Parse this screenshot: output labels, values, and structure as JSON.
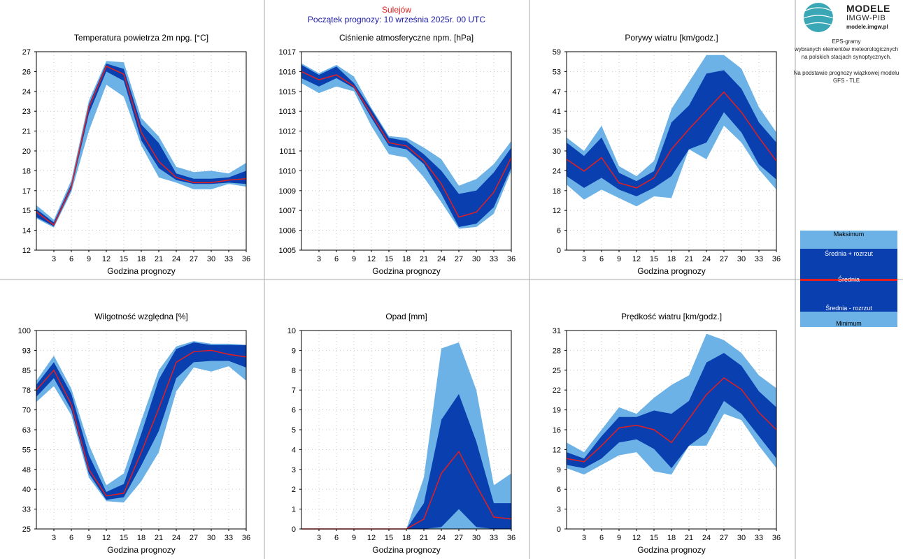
{
  "header": {
    "station": "Sulejów",
    "forecast_start": "Początek prognozy: 10 września 2025r. 00 UTC"
  },
  "logo": {
    "line1": "MODELE",
    "line2": "IMGW-PIB",
    "line3": "modele.imgw.pl",
    "mark": "IMGW"
  },
  "description": {
    "line1": "EPS-gramy",
    "line2": "wybranych elementów meteorologicznych",
    "line3": "na polskich stacjach  synoptycznych.",
    "line4": "Na podstawie prognozy wiązkowej modelu",
    "line5": "GFS - TLE"
  },
  "legend": {
    "max": "Maksimum",
    "mean_plus": "Średnia + rozrzut",
    "mean": "Średnia",
    "mean_minus": "Średnia - rozrzut",
    "min": "Minimum"
  },
  "colors": {
    "outer_band": "#6cb2e6",
    "inner_band": "#0a3fb0",
    "mean_line": "#e41e1e",
    "grid": "#c8c8c8"
  },
  "chart_data": [
    {
      "type": "area",
      "title": "Temperatura powietrza 2m npg. [°C]",
      "xlabel": "Godzina prognozy",
      "x": [
        0,
        3,
        6,
        9,
        12,
        15,
        18,
        21,
        24,
        27,
        30,
        33,
        36
      ],
      "xticks": [
        "3",
        "6",
        "9",
        "12",
        "15",
        "18",
        "21",
        "24",
        "27",
        "30",
        "33",
        "36"
      ],
      "yticks": [
        "12",
        "14",
        "15",
        "17",
        "18",
        "20",
        "21",
        "23",
        "24",
        "26",
        "27"
      ],
      "ylim": [
        12,
        27
      ],
      "series": {
        "max": [
          15.4,
          14.3,
          17.3,
          23.3,
          26.3,
          26.2,
          22.0,
          20.6,
          18.3,
          17.9,
          18.0,
          17.8,
          18.6
        ],
        "mean_plus": [
          15.1,
          14.1,
          17.0,
          23.0,
          26.1,
          25.7,
          21.5,
          20.1,
          17.8,
          17.4,
          17.4,
          17.5,
          18.0
        ],
        "mean": [
          14.9,
          13.9,
          16.8,
          22.8,
          25.9,
          25.3,
          20.9,
          18.7,
          17.5,
          17.1,
          17.1,
          17.3,
          17.4
        ],
        "mean_minus": [
          14.5,
          13.8,
          16.6,
          22.3,
          25.5,
          24.8,
          20.3,
          18.2,
          17.3,
          17.0,
          17.0,
          17.1,
          17.0
        ],
        "min": [
          14.4,
          13.7,
          16.4,
          21.0,
          24.5,
          23.6,
          19.9,
          17.5,
          17.1,
          16.6,
          16.6,
          17.0,
          16.8
        ]
      }
    },
    {
      "type": "area",
      "title": "Ciśnienie atmosferyczne npm. [hPa]",
      "xlabel": "Godzina prognozy",
      "x": [
        0,
        3,
        6,
        9,
        12,
        15,
        18,
        21,
        24,
        27,
        30,
        33,
        36
      ],
      "xticks": [
        "3",
        "6",
        "9",
        "12",
        "15",
        "18",
        "21",
        "24",
        "27",
        "30",
        "33",
        "36"
      ],
      "yticks": [
        "1005",
        "1006",
        "1007",
        "1009",
        "1010",
        "1011",
        "1012",
        "1013",
        "1015",
        "1016",
        "1017"
      ],
      "ylim": [
        1005,
        1017
      ],
      "series": {
        "max": [
          1016.3,
          1015.7,
          1016.2,
          1015.5,
          1013.6,
          1011.9,
          1011.8,
          1011.2,
          1010.5,
          1008.9,
          1009.3,
          1010.2,
          1011.6
        ],
        "mean_plus": [
          1016.2,
          1015.6,
          1016.1,
          1015.1,
          1013.5,
          1011.8,
          1011.6,
          1010.8,
          1009.8,
          1008.4,
          1008.6,
          1009.7,
          1011.2
        ],
        "mean": [
          1015.8,
          1015.3,
          1015.6,
          1014.9,
          1013.2,
          1011.5,
          1011.3,
          1010.4,
          1009.0,
          1007.0,
          1007.3,
          1008.5,
          1010.6
        ],
        "mean_minus": [
          1015.4,
          1014.9,
          1015.4,
          1014.8,
          1013.0,
          1011.3,
          1011.1,
          1010.2,
          1008.4,
          1006.4,
          1006.6,
          1007.6,
          1010.0
        ],
        "min": [
          1015.1,
          1014.5,
          1014.9,
          1014.6,
          1012.5,
          1010.8,
          1010.6,
          1009.4,
          1007.9,
          1006.3,
          1006.4,
          1007.2,
          1009.8
        ]
      }
    },
    {
      "type": "area",
      "title": "Porywy wiatru [km/godz.]",
      "xlabel": "Godzina prognozy",
      "x": [
        0,
        3,
        6,
        9,
        12,
        15,
        18,
        21,
        24,
        27,
        30,
        33,
        36
      ],
      "xticks": [
        "3",
        "6",
        "9",
        "12",
        "15",
        "18",
        "21",
        "24",
        "27",
        "30",
        "33",
        "36"
      ],
      "yticks": [
        "0",
        "6",
        "12",
        "18",
        "24",
        "30",
        "35",
        "41",
        "47",
        "53",
        "59"
      ],
      "ylim": [
        0,
        59
      ],
      "series": {
        "max": [
          33.5,
          29.5,
          37.0,
          25.0,
          22.0,
          26.5,
          42.0,
          50.0,
          58.0,
          58.0,
          54.0,
          42.5,
          35.0
        ],
        "mean_plus": [
          32.0,
          28.0,
          33.5,
          23.0,
          20.5,
          23.5,
          38.0,
          43.0,
          52.5,
          53.5,
          48.0,
          38.0,
          32.0
        ],
        "mean": [
          27.0,
          23.5,
          27.5,
          20.0,
          18.5,
          21.5,
          30.0,
          36.0,
          41.5,
          47.0,
          41.0,
          33.5,
          26.5
        ],
        "mean_minus": [
          22.0,
          18.5,
          21.5,
          18.0,
          16.0,
          18.5,
          22.0,
          30.0,
          32.0,
          41.0,
          35.0,
          25.5,
          21.0
        ],
        "min": [
          19.5,
          15.0,
          18.0,
          15.5,
          13.0,
          16.0,
          15.5,
          30.0,
          27.0,
          37.0,
          32.0,
          24.0,
          18.0
        ]
      }
    },
    {
      "type": "area",
      "title": "Wilgotność względna [%]",
      "xlabel": "Godzina prognozy",
      "x": [
        0,
        3,
        6,
        9,
        12,
        15,
        18,
        21,
        24,
        27,
        30,
        33,
        36
      ],
      "xticks": [
        "3",
        "6",
        "9",
        "12",
        "15",
        "18",
        "21",
        "24",
        "27",
        "30",
        "33",
        "36"
      ],
      "yticks": [
        "25",
        "33",
        "40",
        "48",
        "55",
        "63",
        "70",
        "78",
        "85",
        "93",
        "100"
      ],
      "ylim": [
        25,
        100
      ],
      "series": {
        "max": [
          81.0,
          90.5,
          78.0,
          57.0,
          41.5,
          46.0,
          66.0,
          85.0,
          94.0,
          96.0,
          95.0,
          95.0,
          94.5
        ],
        "mean_plus": [
          79.5,
          88.0,
          76.0,
          53.0,
          39.0,
          42.0,
          61.0,
          81.5,
          93.0,
          95.5,
          94.5,
          94.5,
          94.5
        ],
        "mean": [
          77.5,
          85.0,
          72.0,
          47.5,
          37.5,
          38.5,
          54.0,
          70.5,
          88.0,
          92.0,
          92.5,
          91.0,
          90.0
        ],
        "mean_minus": [
          75.0,
          82.0,
          70.0,
          46.0,
          36.0,
          37.0,
          49.0,
          62.0,
          82.0,
          88.0,
          88.5,
          88.5,
          86.0
        ],
        "min": [
          73.0,
          79.0,
          68.0,
          44.5,
          35.5,
          35.0,
          43.0,
          54.0,
          77.0,
          86.0,
          84.5,
          86.5,
          81.0
        ]
      }
    },
    {
      "type": "area",
      "title": "Opad [mm]",
      "xlabel": "Godzina prognozy",
      "x": [
        0,
        3,
        6,
        9,
        12,
        15,
        18,
        21,
        24,
        27,
        30,
        33,
        36
      ],
      "xticks": [
        "3",
        "6",
        "9",
        "12",
        "15",
        "18",
        "21",
        "24",
        "27",
        "30",
        "33",
        "36"
      ],
      "yticks": [
        "0",
        "1",
        "2",
        "3",
        "4",
        "5",
        "6",
        "7",
        "8",
        "9",
        "10"
      ],
      "ylim": [
        0,
        10
      ],
      "series": {
        "max": [
          0,
          0,
          0,
          0,
          0,
          0,
          0,
          2.6,
          9.1,
          9.4,
          7.0,
          2.2,
          2.8
        ],
        "mean_plus": [
          0,
          0,
          0,
          0,
          0,
          0,
          0,
          1.3,
          5.5,
          6.8,
          4.4,
          1.3,
          1.3
        ],
        "mean": [
          0,
          0,
          0,
          0,
          0,
          0,
          0,
          0.5,
          2.8,
          3.9,
          2.2,
          0.6,
          0.5
        ],
        "mean_minus": [
          0,
          0,
          0,
          0,
          0,
          0,
          0,
          0,
          0.1,
          1.0,
          0.1,
          0,
          0
        ],
        "min": [
          0,
          0,
          0,
          0,
          0,
          0,
          0,
          0,
          0,
          0,
          0,
          0,
          0
        ]
      }
    },
    {
      "type": "area",
      "title": "Prędkość wiatru [km/godz.]",
      "xlabel": "Godzina prognozy",
      "x": [
        0,
        3,
        6,
        9,
        12,
        15,
        18,
        21,
        24,
        27,
        30,
        33,
        36
      ],
      "xticks": [
        "3",
        "6",
        "9",
        "12",
        "15",
        "18",
        "21",
        "24",
        "27",
        "30",
        "33",
        "36"
      ],
      "yticks": [
        "0",
        "3",
        "6",
        "9",
        "12",
        "16",
        "19",
        "22",
        "25",
        "28",
        "31"
      ],
      "ylim": [
        0,
        31
      ],
      "series": {
        "max": [
          13.5,
          12.0,
          15.5,
          19.0,
          18.0,
          20.5,
          22.5,
          24.0,
          30.5,
          29.5,
          27.5,
          24.0,
          22.0
        ],
        "mean_plus": [
          12.0,
          11.0,
          14.5,
          17.5,
          17.5,
          18.5,
          18.0,
          20.0,
          26.0,
          27.5,
          25.5,
          21.5,
          19.0
        ],
        "mean": [
          11.0,
          10.5,
          13.0,
          15.8,
          16.2,
          15.5,
          13.5,
          17.2,
          21.0,
          23.6,
          21.8,
          18.2,
          15.5
        ],
        "mean_minus": [
          10.0,
          9.5,
          11.0,
          13.5,
          14.0,
          12.5,
          9.5,
          13.0,
          15.0,
          20.0,
          18.0,
          14.5,
          11.0
        ],
        "min": [
          9.5,
          8.5,
          10.0,
          11.5,
          12.0,
          9.0,
          8.5,
          13.0,
          13.0,
          18.0,
          17.0,
          13.0,
          9.5
        ]
      }
    }
  ]
}
